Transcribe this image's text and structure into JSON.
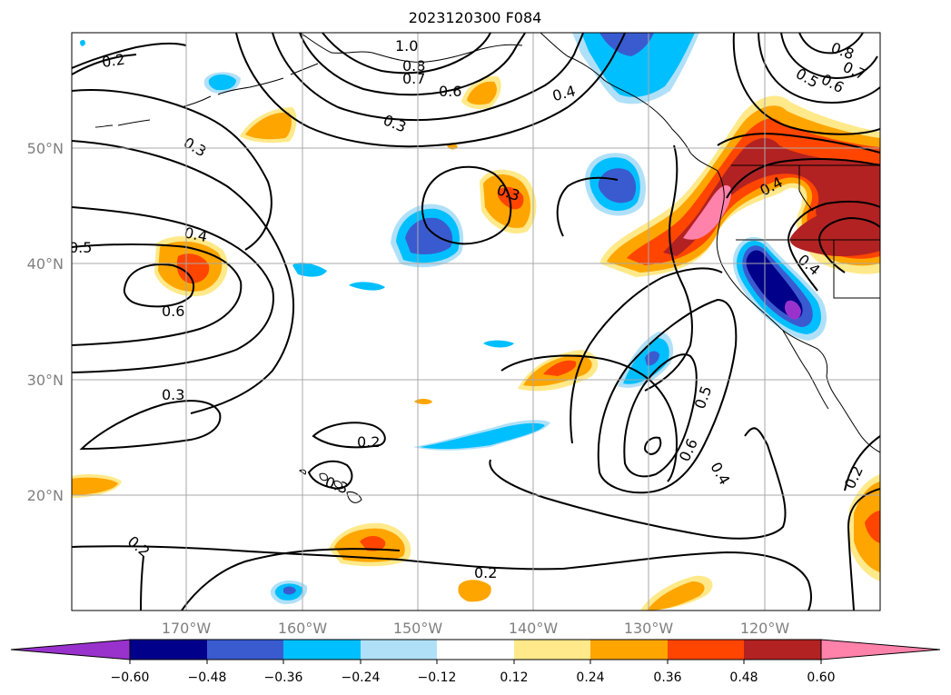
{
  "title": "2023120300 F084",
  "axes": {
    "lon_labels": [
      "170°W",
      "160°W",
      "150°W",
      "140°W",
      "130°W",
      "120°W"
    ],
    "lat_labels": [
      "50°N",
      "40°N",
      "30°N",
      "20°N"
    ]
  },
  "colorbar": {
    "tick_labels": [
      "−0.60",
      "−0.48",
      "−0.36",
      "−0.24",
      "−0.12",
      "0.12",
      "0.24",
      "0.36",
      "0.48",
      "0.60"
    ],
    "colors": {
      "under": "#9932cc",
      "b1": "#00008b",
      "b2": "#3a5bd0",
      "b3": "#00bfff",
      "b4": "#b0e0f8",
      "b5": "#ffffff",
      "b6": "#ffe98a",
      "b7": "#ffa500",
      "b8": "#ff4500",
      "b9": "#b22222",
      "over": "#ff82ab"
    }
  },
  "contour_labels": [
    "0.2",
    "1.0",
    "0.8",
    "0.7",
    "0.6",
    "0.4",
    "0.3",
    "0.8",
    "0.7",
    "0.6",
    "0.5",
    "0.3",
    "0.3",
    "0.4",
    "0.5",
    "0.6",
    "0.4",
    "0.4",
    "0.5",
    "0.3",
    "0.2",
    "0.3",
    "0.6",
    "0.4",
    "0.2",
    "0.2",
    "0.2"
  ]
}
